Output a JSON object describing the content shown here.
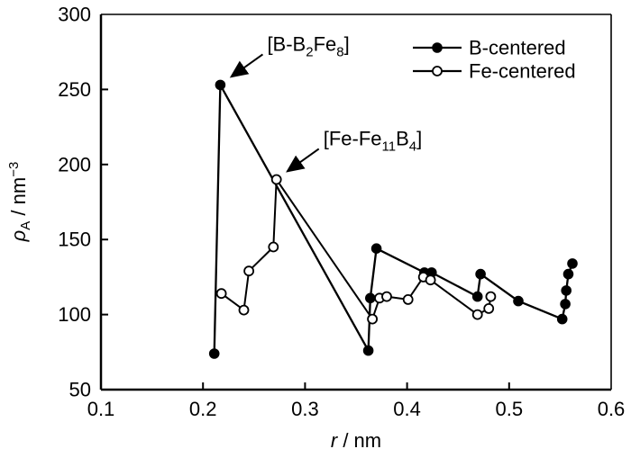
{
  "figure": {
    "background": "#ffffff",
    "axis_color": "#000000",
    "series_color": "#000000"
  },
  "chart_data": {
    "type": "line",
    "title": "",
    "xlabel": {
      "symbol": "r",
      "unit": " / nm"
    },
    "ylabel": {
      "symbol": "ρ",
      "subscript": "A",
      "unit": " / nm",
      "exponent": "−3"
    },
    "xlim": [
      0.1,
      0.6
    ],
    "ylim": [
      50,
      300
    ],
    "x_ticks": [
      0.1,
      0.2,
      0.3,
      0.4,
      0.5,
      0.6
    ],
    "x_tick_labels": [
      "0.1",
      "0.2",
      "0.3",
      "0.4",
      "0.5",
      "0.6"
    ],
    "y_ticks": [
      50,
      100,
      150,
      200,
      250,
      300
    ],
    "y_tick_labels": [
      "50",
      "100",
      "150",
      "200",
      "250",
      "300"
    ],
    "grid": false,
    "legend_position": "top-right-inside",
    "series": [
      {
        "name": "B-centered",
        "marker": "filled-circle",
        "color": "#000000",
        "points": [
          [
            0.211,
            74
          ],
          [
            0.217,
            253
          ],
          [
            0.362,
            76
          ],
          [
            0.364,
            111
          ],
          [
            0.37,
            144
          ],
          [
            0.417,
            128
          ],
          [
            0.424,
            128
          ],
          [
            0.469,
            112
          ],
          [
            0.472,
            127
          ],
          [
            0.509,
            109
          ],
          [
            0.552,
            97
          ],
          [
            0.555,
            107
          ],
          [
            0.556,
            116
          ],
          [
            0.558,
            127
          ],
          [
            0.562,
            134
          ]
        ]
      },
      {
        "name": "Fe-centered",
        "marker": "open-circle",
        "color": "#000000",
        "points": [
          [
            0.218,
            114
          ],
          [
            0.24,
            103
          ],
          [
            0.245,
            129
          ],
          [
            0.269,
            145
          ],
          [
            0.272,
            190
          ],
          [
            0.366,
            97
          ],
          [
            0.373,
            111
          ],
          [
            0.38,
            112
          ],
          [
            0.401,
            110
          ],
          [
            0.416,
            125
          ],
          [
            0.423,
            123
          ],
          [
            0.469,
            100
          ],
          [
            0.48,
            104
          ],
          [
            0.482,
            112
          ]
        ]
      }
    ],
    "annotations": [
      {
        "text": "[B-B₂Fe₈]",
        "target_point": [
          0.217,
          253
        ],
        "parts": [
          {
            "text": "[B-B",
            "sub": false
          },
          {
            "text": "2",
            "sub": true
          },
          {
            "text": "Fe",
            "sub": false
          },
          {
            "text": "8",
            "sub": true
          },
          {
            "text": "]",
            "sub": false
          }
        ]
      },
      {
        "text": "[Fe-Fe₁₁B₄]",
        "target_point": [
          0.272,
          190
        ],
        "parts": [
          {
            "text": "[Fe-Fe",
            "sub": false
          },
          {
            "text": "11",
            "sub": true
          },
          {
            "text": "B",
            "sub": false
          },
          {
            "text": "4",
            "sub": true
          },
          {
            "text": "]",
            "sub": false
          }
        ]
      }
    ]
  }
}
